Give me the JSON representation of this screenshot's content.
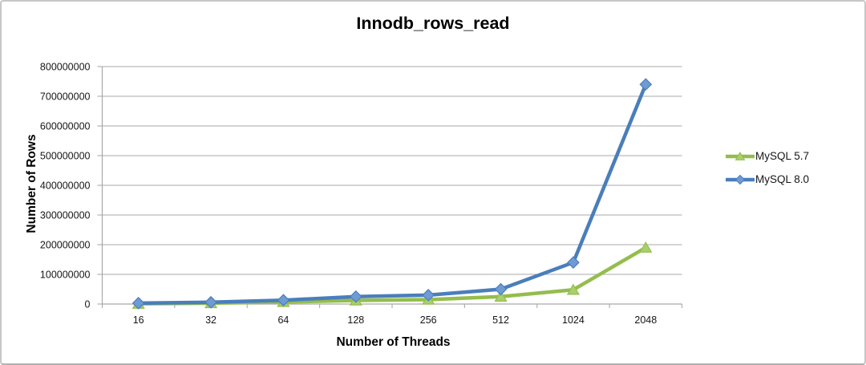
{
  "chart_data": {
    "type": "line",
    "title": "Innodb_rows_read",
    "xlabel": "Number of Threads",
    "ylabel": "Number of Rows",
    "categories": [
      "16",
      "32",
      "64",
      "128",
      "256",
      "512",
      "1024",
      "2048"
    ],
    "ylim": [
      0,
      800000000
    ],
    "y_tick_step": 100000000,
    "y_ticks": [
      "0",
      "100000000",
      "200000000",
      "300000000",
      "400000000",
      "500000000",
      "600000000",
      "700000000",
      "800000000"
    ],
    "grid": "horizontal",
    "legend_position": "right",
    "series": [
      {
        "name": "MySQL 5.7",
        "marker": "triangle",
        "color": "#94bd4d",
        "marker_fill": "#a9d06a",
        "values": [
          1000000,
          3000000,
          7000000,
          12000000,
          15000000,
          25000000,
          48000000,
          190000000
        ]
      },
      {
        "name": "MySQL 8.0",
        "marker": "diamond",
        "color": "#4a7ebb",
        "marker_fill": "#6f9bd4",
        "values": [
          3000000,
          6000000,
          13000000,
          25000000,
          30000000,
          50000000,
          140000000,
          740000000
        ]
      }
    ],
    "grid_color": "#a9a9a9",
    "text_color": "#161616"
  }
}
